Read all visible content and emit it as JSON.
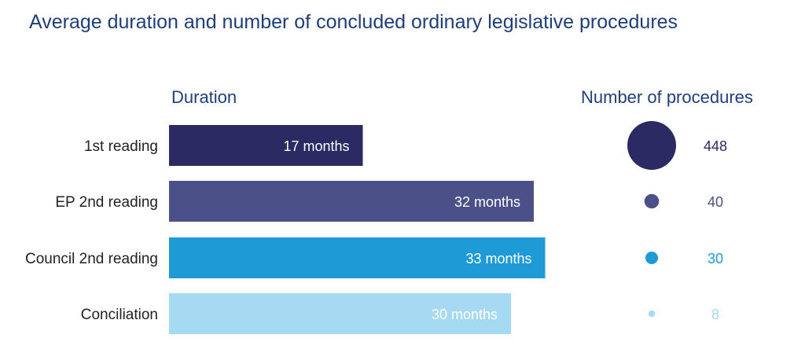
{
  "title": "Average duration and number of concluded ordinary legislative procedures",
  "chart_data": {
    "type": "bar",
    "title": "Average duration and number of concluded ordinary legislative procedures",
    "categories": [
      "1st reading",
      "EP 2nd reading",
      "Council 2nd reading",
      "Conciliation"
    ],
    "duration": {
      "header": "Duration",
      "unit": "months",
      "values": [
        17,
        32,
        33,
        30
      ],
      "labels": [
        "17 months",
        "32 months",
        "33 months",
        "30 months"
      ]
    },
    "procedures": {
      "header": "Number of procedures",
      "values": [
        448,
        40,
        30,
        8
      ],
      "labels": [
        "448",
        "40",
        "30",
        "8"
      ]
    },
    "colors": [
      "#2b2a63",
      "#4b5088",
      "#1e9ad6",
      "#a6daf2"
    ],
    "procedure_text_colors": [
      "#2b2a63",
      "#4b5088",
      "#1e9ad6",
      "#a6daf2"
    ],
    "title_color": "#1f3f7a",
    "legend": "none",
    "grid": false
  }
}
